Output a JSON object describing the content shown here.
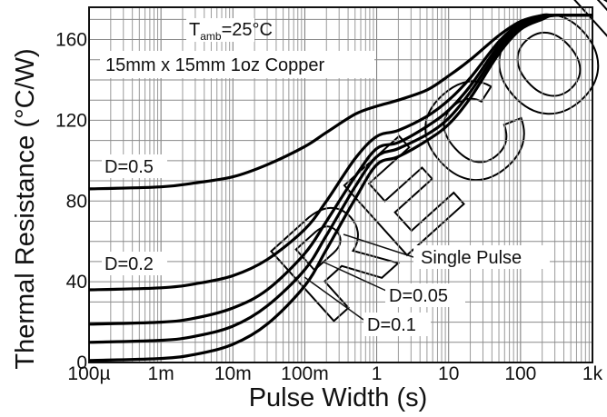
{
  "chart_data": {
    "type": "line",
    "xlabel": "Pulse Width (s)",
    "ylabel": "Thermal Resistance (°C/W)",
    "x_scale": "log",
    "xlim": [
      0.0001,
      1000
    ],
    "ylim": [
      0,
      176
    ],
    "grid": true,
    "x_ticks": [
      {
        "value": 0.0001,
        "label": "100µ"
      },
      {
        "value": 0.001,
        "label": "1m"
      },
      {
        "value": 0.01,
        "label": "10m"
      },
      {
        "value": 0.1,
        "label": "100m"
      },
      {
        "value": 1,
        "label": "1"
      },
      {
        "value": 10,
        "label": "10"
      },
      {
        "value": 100,
        "label": "100"
      },
      {
        "value": 1000,
        "label": "1k"
      }
    ],
    "y_ticks": [
      {
        "value": 0,
        "label": "0"
      },
      {
        "value": 40,
        "label": "40"
      },
      {
        "value": 80,
        "label": "80"
      },
      {
        "value": 120,
        "label": "120"
      },
      {
        "value": 160,
        "label": "160"
      }
    ],
    "annotation": {
      "t_main": "T",
      "t_sub": "amb",
      "t_rest": "=25°C",
      "line2": "15mm x 15mm 1oz Copper"
    },
    "series": [
      {
        "name": "D=0.5",
        "x": [
          0.0001,
          0.001,
          0.003,
          0.01,
          0.03,
          0.1,
          0.2,
          0.5,
          1,
          2,
          5,
          10,
          20,
          50,
          100,
          200,
          300,
          1000
        ],
        "y": [
          86,
          87,
          89,
          92,
          98,
          107,
          114,
          123,
          127,
          130,
          135,
          142,
          150,
          162,
          169,
          172,
          172,
          172
        ]
      },
      {
        "name": "D=0.2",
        "x": [
          0.0001,
          0.001,
          0.003,
          0.01,
          0.03,
          0.1,
          0.2,
          0.5,
          1,
          2,
          5,
          10,
          20,
          50,
          100,
          200,
          300,
          1000
        ],
        "y": [
          36,
          37,
          39,
          43,
          51,
          66,
          80,
          101,
          112,
          115,
          122,
          130,
          141,
          159,
          168,
          172,
          172,
          172
        ]
      },
      {
        "name": "D=0.1",
        "x": [
          0.0001,
          0.001,
          0.003,
          0.01,
          0.03,
          0.1,
          0.2,
          0.5,
          1,
          2,
          5,
          10,
          20,
          50,
          100,
          200,
          300,
          1000
        ],
        "y": [
          19,
          20,
          22,
          27,
          36,
          54,
          70,
          92,
          106,
          109,
          117,
          125,
          137,
          157,
          167,
          171,
          172,
          172
        ]
      },
      {
        "name": "D=0.05",
        "x": [
          0.0001,
          0.001,
          0.003,
          0.01,
          0.03,
          0.1,
          0.2,
          0.5,
          1,
          2,
          5,
          10,
          20,
          50,
          100,
          200,
          300,
          1000
        ],
        "y": [
          10,
          11,
          13,
          18,
          28,
          46,
          63,
          87,
          102,
          106,
          113,
          121,
          134,
          155,
          166,
          171,
          172,
          172
        ]
      },
      {
        "name": "Single Pulse",
        "x": [
          0.0001,
          0.001,
          0.003,
          0.01,
          0.03,
          0.1,
          0.2,
          0.5,
          1,
          2,
          5,
          10,
          20,
          50,
          100,
          200,
          300,
          1000
        ],
        "y": [
          1,
          2,
          4,
          9,
          19,
          38,
          56,
          81,
          98,
          102,
          110,
          118,
          131,
          153,
          165,
          170,
          172,
          172
        ]
      }
    ]
  }
}
